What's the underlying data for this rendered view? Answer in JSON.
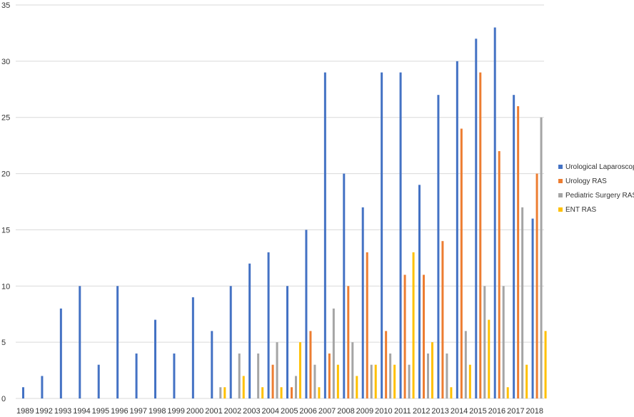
{
  "chart_data": {
    "type": "bar",
    "title": "",
    "xlabel": "",
    "ylabel": "",
    "ylim": [
      0,
      35
    ],
    "yticks": [
      0,
      5,
      10,
      15,
      20,
      25,
      30,
      35
    ],
    "grid": true,
    "legend_position": "right",
    "categories": [
      "1989",
      "1992",
      "1993",
      "1994",
      "1995",
      "1996",
      "1997",
      "1998",
      "1999",
      "2000",
      "2001",
      "2002",
      "2003",
      "2004",
      "2005",
      "2006",
      "2007",
      "2008",
      "2009",
      "2010",
      "2011",
      "2012",
      "2013",
      "2014",
      "2015",
      "2016",
      "2017",
      "2018"
    ],
    "series": [
      {
        "name": "Urological Laparoscopy",
        "color": "#4472C4",
        "values": [
          1,
          2,
          8,
          10,
          3,
          10,
          4,
          7,
          4,
          9,
          6,
          10,
          12,
          13,
          10,
          15,
          29,
          20,
          17,
          29,
          29,
          19,
          27,
          30,
          32,
          33,
          27,
          16
        ]
      },
      {
        "name": "Urology RAS",
        "color": "#ED7D31",
        "values": [
          0,
          0,
          0,
          0,
          0,
          0,
          0,
          0,
          0,
          0,
          0,
          0,
          0,
          3,
          1,
          6,
          4,
          10,
          13,
          6,
          11,
          11,
          14,
          24,
          29,
          22,
          26,
          20
        ]
      },
      {
        "name": "Pediatric Surgery RAS",
        "color": "#A5A5A5",
        "values": [
          0,
          0,
          0,
          0,
          0,
          0,
          0,
          0,
          0,
          0,
          1,
          4,
          4,
          5,
          2,
          3,
          8,
          5,
          3,
          4,
          3,
          4,
          4,
          6,
          10,
          10,
          17,
          25
        ]
      },
      {
        "name": "ENT RAS",
        "color": "#FFC000",
        "values": [
          0,
          0,
          0,
          0,
          0,
          0,
          0,
          0,
          0,
          0,
          1,
          2,
          1,
          1,
          5,
          1,
          3,
          2,
          3,
          3,
          13,
          5,
          1,
          3,
          7,
          1,
          3,
          6
        ]
      }
    ]
  }
}
